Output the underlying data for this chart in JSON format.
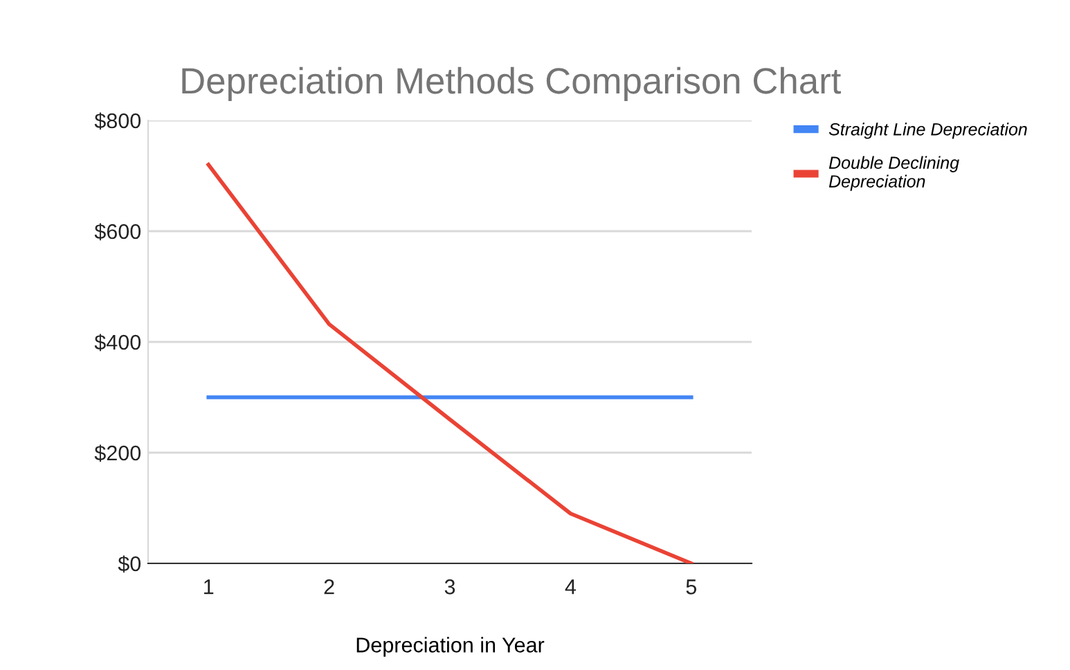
{
  "chart_data": {
    "type": "line",
    "title": "Depreciation Methods Comparison Chart",
    "xlabel": "Depreciation in Year",
    "categories": [
      "1",
      "2",
      "3",
      "4",
      "5"
    ],
    "series": [
      {
        "name": "Straight Line Depreciation",
        "color": "#4285f4",
        "values": [
          300,
          300,
          300,
          300,
          300
        ]
      },
      {
        "name": "Double Declining Depreciation",
        "color": "#ea4335",
        "values": [
          720,
          432,
          260,
          90,
          0
        ]
      }
    ],
    "ylim": [
      0,
      800
    ],
    "yticks": [
      {
        "value": 0,
        "label": "$0"
      },
      {
        "value": 200,
        "label": "$200"
      },
      {
        "value": 400,
        "label": "$400"
      },
      {
        "value": 600,
        "label": "$600"
      },
      {
        "value": 800,
        "label": "$800"
      }
    ],
    "grid": "y",
    "legend": "top right",
    "marker": "none",
    "line_style": "solid"
  }
}
